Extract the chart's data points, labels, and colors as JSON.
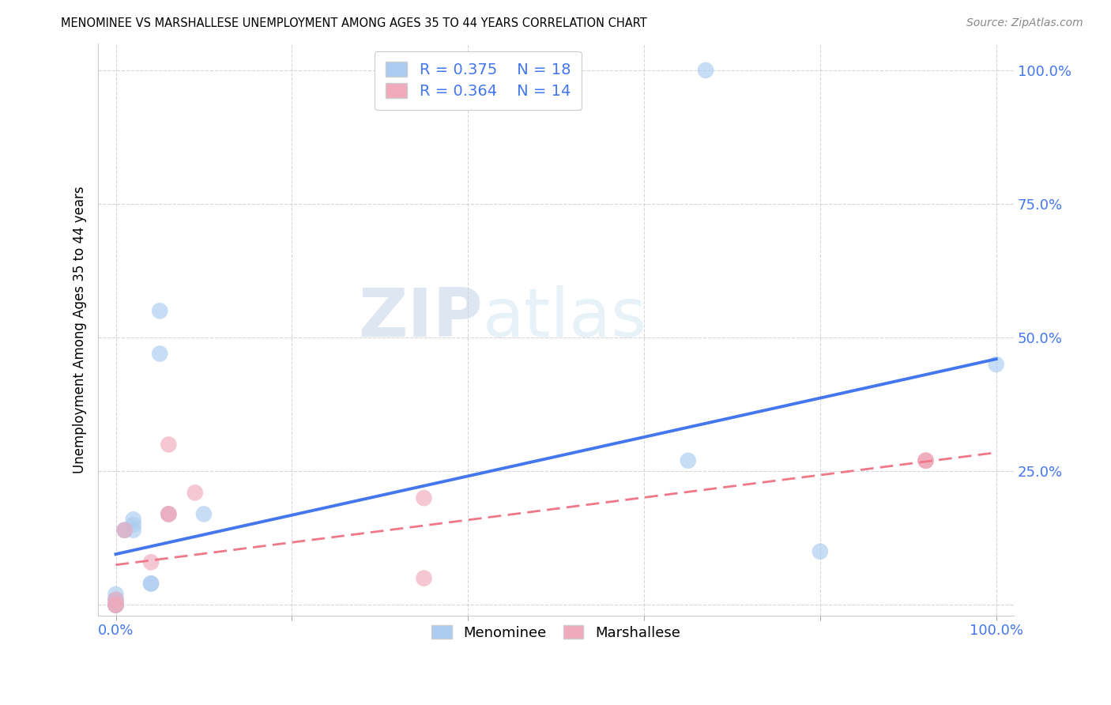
{
  "title": "MENOMINEE VS MARSHALLESE UNEMPLOYMENT AMONG AGES 35 TO 44 YEARS CORRELATION CHART",
  "source": "Source: ZipAtlas.com",
  "ylabel": "Unemployment Among Ages 35 to 44 years",
  "xlim": [
    -0.02,
    1.02
  ],
  "ylim": [
    -0.02,
    1.05
  ],
  "xtick_positions": [
    0.0,
    0.2,
    0.4,
    0.6,
    0.8,
    1.0
  ],
  "xtick_labels": [
    "0.0%",
    "",
    "",
    "",
    "",
    "100.0%"
  ],
  "ytick_positions": [
    0.0,
    0.25,
    0.5,
    0.75,
    1.0
  ],
  "ytick_labels": [
    "",
    "25.0%",
    "50.0%",
    "75.0%",
    "100.0%"
  ],
  "menominee_color": "#aaccf0",
  "marshallese_color": "#f0aabb",
  "menominee_line_color": "#4477ee",
  "marshallese_line_color": "#ee7788",
  "legend_color": "#4477ee",
  "watermark_zip": "ZIP",
  "watermark_atlas": "atlas",
  "menominee_x": [
    0.0,
    0.0,
    0.0,
    0.0,
    0.0,
    0.0,
    0.0,
    0.01,
    0.01,
    0.02,
    0.02,
    0.02,
    0.04,
    0.04,
    0.05,
    0.05,
    0.06,
    0.65,
    0.67,
    0.8,
    0.1,
    1.0
  ],
  "menominee_y": [
    0.0,
    0.0,
    0.0,
    0.0,
    0.01,
    0.01,
    0.02,
    0.14,
    0.14,
    0.14,
    0.15,
    0.16,
    0.04,
    0.04,
    0.55,
    0.47,
    0.17,
    0.27,
    1.0,
    0.1,
    0.17,
    0.45
  ],
  "marshallese_x": [
    0.0,
    0.0,
    0.0,
    0.01,
    0.04,
    0.06,
    0.06,
    0.06,
    0.09,
    0.35,
    0.35,
    0.92,
    0.92,
    0.92
  ],
  "marshallese_y": [
    0.0,
    0.0,
    0.01,
    0.14,
    0.08,
    0.17,
    0.3,
    0.17,
    0.21,
    0.2,
    0.05,
    0.27,
    0.27,
    0.27
  ],
  "menominee_trend_x0": 0.0,
  "menominee_trend_y0": 0.095,
  "menominee_trend_x1": 1.0,
  "menominee_trend_y1": 0.46,
  "marshallese_trend_x0": 0.0,
  "marshallese_trend_y0": 0.075,
  "marshallese_trend_x1": 1.0,
  "marshallese_trend_y1": 0.285,
  "background_color": "#ffffff",
  "grid_color": "#cccccc",
  "marker_size": 220,
  "marker_alpha": 0.65
}
